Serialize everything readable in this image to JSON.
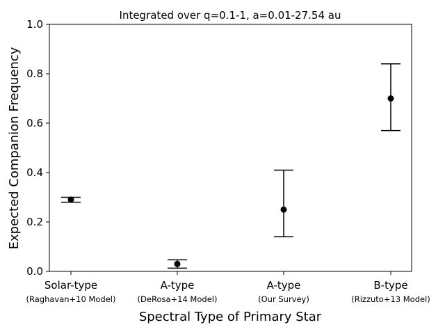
{
  "chart_data": {
    "type": "scatter",
    "title": "Integrated over q=0.1-1, a=0.01-27.54 au",
    "xlabel": "Spectral Type of Primary Star",
    "ylabel": "Expected Companion Frequency",
    "ylim": [
      0.0,
      1.0
    ],
    "yticks": [
      "0.0",
      "0.2",
      "0.4",
      "0.6",
      "0.8",
      "1.0"
    ],
    "grid": false,
    "categories": [
      {
        "label": "Solar-type",
        "sublabel": "(Raghavan+10 Model)"
      },
      {
        "label": "A-type",
        "sublabel": "(DeRosa+14 Model)"
      },
      {
        "label": "A-type",
        "sublabel": "(Our Survey)"
      },
      {
        "label": "B-type",
        "sublabel": "(Rizzuto+13 Model)"
      }
    ],
    "series": [
      {
        "values": [
          0.29,
          0.03,
          0.25,
          0.7
        ],
        "err_low": [
          0.28,
          0.013,
          0.14,
          0.57
        ],
        "err_high": [
          0.3,
          0.047,
          0.41,
          0.84
        ],
        "color": "#000000"
      }
    ]
  }
}
